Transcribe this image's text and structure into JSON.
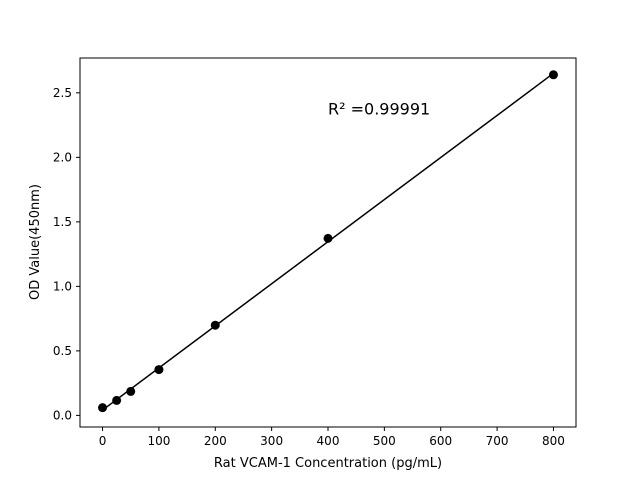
{
  "chart_data": {
    "type": "scatter",
    "title": "",
    "xlabel": "Rat VCAM-1 Concentration (pg/mL)",
    "ylabel": "OD Value(450nm)",
    "x": [
      0,
      25,
      50,
      100,
      200,
      400,
      800
    ],
    "y": [
      0.06,
      0.116,
      0.186,
      0.355,
      0.699,
      1.372,
      2.64
    ],
    "fit_line": "linear",
    "annotation": {
      "text": "R² =0.99991",
      "x": 400,
      "y": 2.38
    },
    "xlim": [
      -40,
      840
    ],
    "ylim": [
      -0.09,
      2.77
    ],
    "xticks": [
      0,
      100,
      200,
      300,
      400,
      500,
      600,
      700,
      800
    ],
    "yticks": [
      0.0,
      0.5,
      1.0,
      1.5,
      2.0,
      2.5
    ],
    "ytick_labels": [
      "0.0",
      "0.5",
      "1.0",
      "1.5",
      "2.0",
      "2.5"
    ],
    "grid": false,
    "color": "#000000"
  }
}
